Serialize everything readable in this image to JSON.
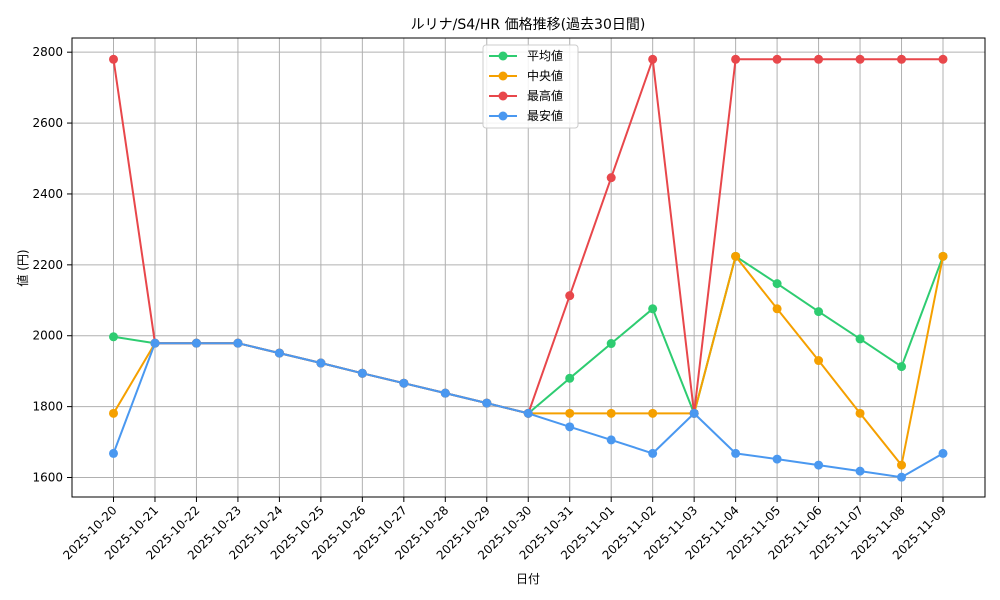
{
  "chart_data": {
    "type": "line",
    "title": "ルリナ/S4/HR 価格推移(過去30日間)",
    "xlabel": "日付",
    "ylabel": "値 (円)",
    "ylim": [
      1545,
      2840
    ],
    "yticks": [
      1600,
      1800,
      2000,
      2200,
      2400,
      2600,
      2800
    ],
    "grid": true,
    "legend_position": "top-center",
    "categories": [
      "2025-10-20",
      "2025-10-21",
      "2025-10-22",
      "2025-10-23",
      "2025-10-24",
      "2025-10-25",
      "2025-10-26",
      "2025-10-27",
      "2025-10-28",
      "2025-10-29",
      "2025-10-30",
      "2025-10-31",
      "2025-11-01",
      "2025-11-02",
      "2025-11-03",
      "2025-11-04",
      "2025-11-05",
      "2025-11-06",
      "2025-11-07",
      "2025-11-08",
      "2025-11-09"
    ],
    "series": [
      {
        "name": "平均値",
        "color": "#2ecc71",
        "values": [
          1997,
          1979,
          1979,
          1979,
          1951,
          1923,
          1894,
          1866,
          1838,
          1810,
          1781,
          1880,
          1978,
          2076,
          1781,
          2224,
          2147,
          2068,
          1991,
          1913,
          2224
        ]
      },
      {
        "name": "中央値",
        "color": "#f5a000",
        "values": [
          1781,
          1979,
          1979,
          1979,
          1951,
          1923,
          1894,
          1866,
          1838,
          1810,
          1781,
          1781,
          1781,
          1781,
          1781,
          2224,
          2076,
          1930,
          1781,
          1635,
          2224
        ]
      },
      {
        "name": "最高値",
        "color": "#e8474b",
        "values": [
          2780,
          1979,
          1979,
          1979,
          1951,
          1923,
          1894,
          1866,
          1838,
          1810,
          1781,
          2113,
          2446,
          2780,
          1781,
          2780,
          2780,
          2780,
          2780,
          2780,
          2780
        ]
      },
      {
        "name": "最安値",
        "color": "#4a98f0",
        "values": [
          1668,
          1979,
          1979,
          1979,
          1951,
          1923,
          1894,
          1866,
          1838,
          1810,
          1781,
          1743,
          1706,
          1668,
          1781,
          1668,
          1652,
          1635,
          1618,
          1601,
          1668
        ]
      }
    ]
  }
}
